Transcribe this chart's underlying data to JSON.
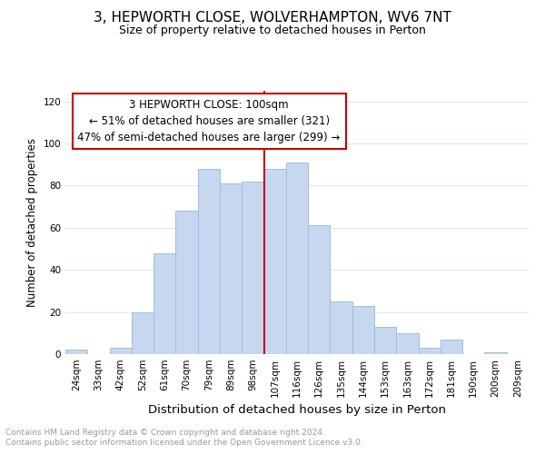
{
  "title": "3, HEPWORTH CLOSE, WOLVERHAMPTON, WV6 7NT",
  "subtitle": "Size of property relative to detached houses in Perton",
  "xlabel": "Distribution of detached houses by size in Perton",
  "ylabel": "Number of detached properties",
  "bar_labels": [
    "24sqm",
    "33sqm",
    "42sqm",
    "52sqm",
    "61sqm",
    "70sqm",
    "79sqm",
    "89sqm",
    "98sqm",
    "107sqm",
    "116sqm",
    "126sqm",
    "135sqm",
    "144sqm",
    "153sqm",
    "163sqm",
    "172sqm",
    "181sqm",
    "190sqm",
    "200sqm",
    "209sqm"
  ],
  "bar_values": [
    2,
    0,
    3,
    20,
    48,
    68,
    88,
    81,
    82,
    88,
    91,
    61,
    25,
    23,
    13,
    10,
    3,
    7,
    0,
    1,
    0
  ],
  "bar_color": "#c5d8f0",
  "bar_edge_color": "#a0bedd",
  "reference_line_x": 8.5,
  "reference_line_color": "#cc0000",
  "ylim": [
    0,
    125
  ],
  "yticks": [
    0,
    20,
    40,
    60,
    80,
    100,
    120
  ],
  "annotation_title": "3 HEPWORTH CLOSE: 100sqm",
  "annotation_line1": "← 51% of detached houses are smaller (321)",
  "annotation_line2": "47% of semi-detached houses are larger (299) →",
  "annotation_box_color": "#cc0000",
  "footer_line1": "Contains HM Land Registry data © Crown copyright and database right 2024.",
  "footer_line2": "Contains public sector information licensed under the Open Government Licence v3.0.",
  "footer_color": "#999999",
  "title_fontsize": 11,
  "subtitle_fontsize": 9,
  "xlabel_fontsize": 9.5,
  "ylabel_fontsize": 8.5,
  "tick_fontsize": 7.5,
  "annotation_fontsize": 8.5,
  "footer_fontsize": 6.5,
  "background_color": "#ffffff",
  "grid_color": "#dde8f4"
}
